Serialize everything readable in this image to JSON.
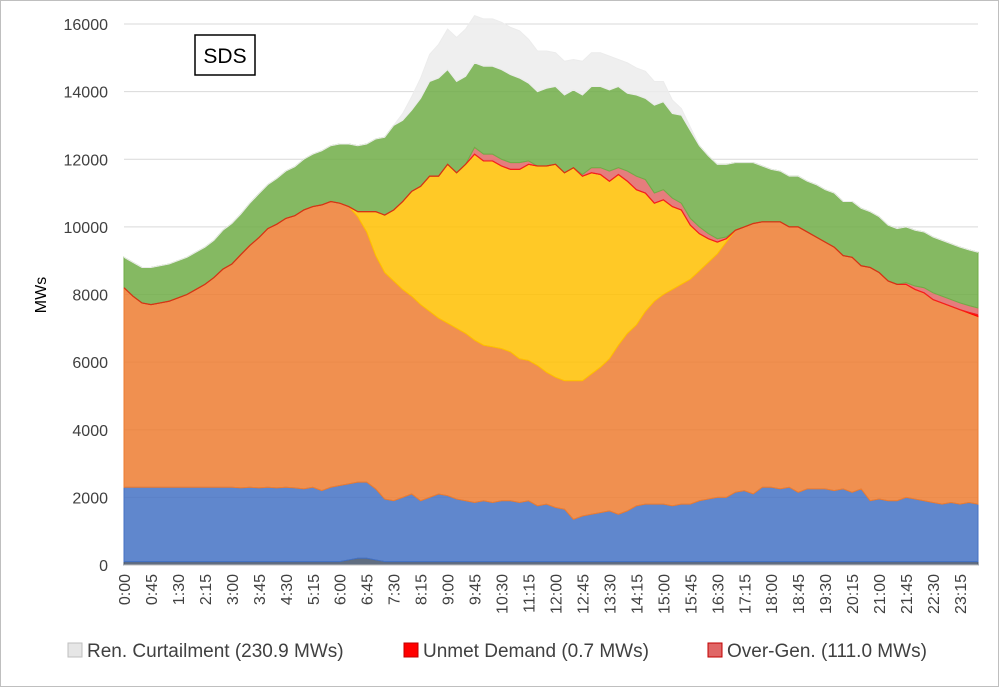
{
  "chart_data": {
    "type": "area",
    "title": "",
    "badge": "SDS",
    "ylabel": "MWs",
    "xlabel": "",
    "ylim": [
      0,
      16000
    ],
    "yticks": [
      0,
      2000,
      4000,
      6000,
      8000,
      10000,
      12000,
      14000,
      16000
    ],
    "grid": true,
    "legend_position": "bottom",
    "x": [
      "0:00",
      "0:15",
      "0:30",
      "0:45",
      "1:00",
      "1:15",
      "1:30",
      "1:45",
      "2:00",
      "2:15",
      "2:30",
      "2:45",
      "3:00",
      "3:15",
      "3:30",
      "3:45",
      "4:00",
      "4:15",
      "4:30",
      "4:45",
      "5:00",
      "5:15",
      "5:30",
      "5:45",
      "6:00",
      "6:15",
      "6:30",
      "6:45",
      "7:00",
      "7:15",
      "7:30",
      "7:45",
      "8:00",
      "8:15",
      "8:30",
      "8:45",
      "9:00",
      "9:15",
      "9:30",
      "9:45",
      "10:00",
      "10:15",
      "10:30",
      "10:45",
      "11:00",
      "11:15",
      "11:30",
      "11:45",
      "12:00",
      "12:15",
      "12:30",
      "12:45",
      "13:00",
      "13:15",
      "13:30",
      "13:45",
      "14:00",
      "14:15",
      "14:30",
      "14:45",
      "15:00",
      "15:15",
      "15:30",
      "15:45",
      "16:00",
      "16:15",
      "16:30",
      "16:45",
      "17:00",
      "17:15",
      "17:30",
      "17:45",
      "18:00",
      "18:15",
      "18:30",
      "18:45",
      "19:00",
      "19:15",
      "19:30",
      "19:45",
      "20:00",
      "20:15",
      "20:30",
      "20:45",
      "21:00",
      "21:15",
      "21:30",
      "21:45",
      "22:00",
      "22:15",
      "22:30",
      "22:45",
      "23:00",
      "23:15",
      "23:30",
      "23:45"
    ],
    "xtick_labels": [
      "0:00",
      "0:45",
      "1:30",
      "2:15",
      "3:00",
      "3:45",
      "4:30",
      "5:15",
      "6:00",
      "6:45",
      "7:30",
      "8:15",
      "9:00",
      "9:45",
      "10:30",
      "11:15",
      "12:00",
      "12:45",
      "13:30",
      "14:15",
      "15:00",
      "15:45",
      "16:30",
      "17:15",
      "18:00",
      "18:45",
      "19:30",
      "20:15",
      "21:00",
      "21:45",
      "22:30",
      "23:15"
    ],
    "series": [
      {
        "name": "",
        "color": "#44546a",
        "values": [
          100,
          100,
          100,
          100,
          100,
          100,
          100,
          100,
          100,
          100,
          100,
          100,
          100,
          100,
          100,
          100,
          100,
          100,
          100,
          100,
          100,
          100,
          100,
          100,
          100,
          150,
          200,
          200,
          150,
          100,
          100,
          100,
          100,
          100,
          100,
          100,
          100,
          100,
          100,
          100,
          100,
          100,
          100,
          100,
          100,
          100,
          100,
          100,
          100,
          100,
          100,
          100,
          100,
          100,
          100,
          100,
          100,
          100,
          100,
          100,
          100,
          100,
          100,
          100,
          100,
          100,
          100,
          100,
          100,
          100,
          100,
          100,
          100,
          100,
          100,
          100,
          100,
          100,
          100,
          100,
          100,
          100,
          100,
          100,
          100,
          100,
          100,
          100,
          100,
          100,
          100,
          100,
          100,
          100,
          100,
          100
        ]
      },
      {
        "name": "",
        "color": "#4472c4",
        "values": [
          2200,
          2200,
          2200,
          2200,
          2200,
          2200,
          2200,
          2200,
          2200,
          2200,
          2200,
          2200,
          2200,
          2180,
          2200,
          2180,
          2200,
          2180,
          2200,
          2180,
          2150,
          2200,
          2100,
          2200,
          2250,
          2250,
          2250,
          2250,
          2100,
          1850,
          1800,
          1900,
          2000,
          1800,
          1900,
          2000,
          1950,
          1850,
          1800,
          1750,
          1800,
          1750,
          1800,
          1800,
          1750,
          1800,
          1650,
          1700,
          1600,
          1550,
          1250,
          1350,
          1400,
          1450,
          1500,
          1400,
          1500,
          1650,
          1700,
          1700,
          1700,
          1650,
          1700,
          1700,
          1800,
          1850,
          1900,
          1900,
          2050,
          2100,
          2000,
          2200,
          2200,
          2150,
          2200,
          2050,
          2150,
          2150,
          2150,
          2100,
          2150,
          2050,
          2150,
          1800,
          1850,
          1800,
          1800,
          1900,
          1850,
          1800,
          1750,
          1700,
          1750,
          1700,
          1750,
          1700
        ]
      },
      {
        "name": "",
        "color": "#ed7d31",
        "values": [
          5900,
          5650,
          5450,
          5400,
          5450,
          5500,
          5600,
          5700,
          5850,
          6000,
          6200,
          6450,
          6600,
          6900,
          7150,
          7400,
          7650,
          7800,
          7950,
          8050,
          8250,
          8300,
          8450,
          8450,
          8350,
          8200,
          7850,
          7400,
          6900,
          6700,
          6500,
          6150,
          5850,
          5800,
          5500,
          5200,
          5100,
          5050,
          4950,
          4800,
          4600,
          4600,
          4500,
          4400,
          4250,
          4150,
          4150,
          3900,
          3850,
          3800,
          4100,
          4000,
          4150,
          4300,
          4500,
          5000,
          5250,
          5350,
          5700,
          6000,
          6200,
          6400,
          6500,
          6650,
          6800,
          7000,
          7200,
          7550,
          7750,
          7800,
          8000,
          7850,
          7850,
          7900,
          7700,
          7850,
          7600,
          7450,
          7300,
          7200,
          6900,
          6950,
          6600,
          6900,
          6700,
          6500,
          6400,
          6300,
          6200,
          6150,
          6000,
          5950,
          5800,
          5750,
          5600,
          5550
        ]
      },
      {
        "name": "",
        "color": "#ffc000",
        "values": [
          0,
          0,
          0,
          0,
          0,
          0,
          0,
          0,
          0,
          0,
          0,
          0,
          0,
          0,
          0,
          0,
          0,
          0,
          0,
          0,
          0,
          0,
          0,
          0,
          0,
          0,
          150,
          600,
          1300,
          1700,
          2100,
          2600,
          3100,
          3500,
          4000,
          4200,
          4700,
          4600,
          5000,
          5500,
          5450,
          5500,
          5400,
          5400,
          5600,
          5800,
          5900,
          6100,
          6300,
          6150,
          6300,
          6050,
          5950,
          5700,
          5250,
          5050,
          4500,
          4000,
          3500,
          2900,
          2800,
          2450,
          2200,
          1600,
          1100,
          700,
          350,
          100,
          0,
          0,
          0,
          0,
          0,
          0,
          0,
          0,
          0,
          0,
          0,
          0,
          0,
          0,
          0,
          0,
          0,
          0,
          0,
          0,
          0,
          0,
          0,
          0,
          0,
          0,
          0,
          0
        ]
      },
      {
        "name": "",
        "color": "#ff0000",
        "values": [
          0,
          0,
          0,
          0,
          0,
          0,
          0,
          0,
          0,
          0,
          0,
          0,
          0,
          0,
          0,
          0,
          0,
          0,
          0,
          0,
          0,
          0,
          0,
          0,
          0,
          0,
          0,
          0,
          0,
          0,
          0,
          0,
          0,
          0,
          0,
          0,
          0,
          0,
          0,
          0,
          0,
          0,
          0,
          0,
          0,
          0,
          0,
          0,
          0,
          0,
          0,
          0,
          0,
          0,
          0,
          0,
          0,
          0,
          0,
          0,
          0,
          0,
          0,
          0,
          0,
          0,
          0,
          0,
          0,
          0,
          0,
          0,
          0,
          0,
          0,
          0,
          0,
          0,
          0,
          0,
          0,
          0,
          0,
          0,
          0,
          0,
          0,
          0,
          0,
          0,
          0,
          0,
          0,
          0,
          20,
          50
        ]
      },
      {
        "name": "Over-Gen. (111.0 MWs)",
        "color": "#e06666",
        "values": [
          0,
          0,
          0,
          0,
          0,
          0,
          0,
          0,
          0,
          0,
          0,
          0,
          0,
          0,
          0,
          0,
          0,
          0,
          0,
          0,
          0,
          0,
          0,
          0,
          0,
          0,
          0,
          0,
          0,
          0,
          0,
          0,
          0,
          0,
          0,
          0,
          0,
          0,
          0,
          200,
          200,
          200,
          200,
          200,
          200,
          100,
          0,
          0,
          0,
          0,
          0,
          50,
          150,
          200,
          300,
          200,
          300,
          400,
          400,
          300,
          300,
          250,
          200,
          200,
          200,
          150,
          100,
          50,
          0,
          0,
          0,
          0,
          0,
          0,
          0,
          0,
          0,
          0,
          0,
          0,
          0,
          0,
          0,
          0,
          0,
          0,
          0,
          50,
          100,
          150,
          200,
          200,
          200,
          200,
          200,
          200
        ]
      },
      {
        "name": "",
        "color": "#70ad47",
        "values": [
          900,
          1000,
          1050,
          1100,
          1100,
          1100,
          1100,
          1100,
          1100,
          1100,
          1100,
          1150,
          1200,
          1200,
          1250,
          1300,
          1300,
          1350,
          1400,
          1450,
          1500,
          1550,
          1600,
          1650,
          1750,
          1850,
          1950,
          2000,
          2150,
          2300,
          2500,
          2400,
          2400,
          2600,
          2800,
          2900,
          2800,
          2700,
          2600,
          2500,
          2600,
          2600,
          2650,
          2600,
          2500,
          2300,
          2200,
          2300,
          2300,
          2300,
          2300,
          2350,
          2400,
          2400,
          2400,
          2400,
          2300,
          2400,
          2400,
          2600,
          2600,
          2500,
          2600,
          2600,
          2400,
          2300,
          2200,
          2150,
          2000,
          1900,
          1800,
          1650,
          1550,
          1500,
          1500,
          1500,
          1500,
          1550,
          1550,
          1600,
          1600,
          1650,
          1700,
          1650,
          1650,
          1650,
          1650,
          1650,
          1650,
          1650,
          1650,
          1650,
          1650,
          1650,
          1650,
          1650
        ]
      },
      {
        "name": "Ren. Curtailment (230.9 MWs)",
        "color": "#ececec",
        "values": [
          0,
          0,
          0,
          0,
          0,
          0,
          0,
          0,
          0,
          0,
          0,
          0,
          0,
          0,
          0,
          0,
          0,
          0,
          0,
          0,
          0,
          0,
          0,
          0,
          0,
          0,
          0,
          0,
          0,
          0,
          0,
          200,
          400,
          600,
          800,
          1000,
          1200,
          1300,
          1400,
          1400,
          1400,
          1400,
          1400,
          1400,
          1400,
          1300,
          1200,
          1100,
          1000,
          1000,
          900,
          1000,
          1000,
          1000,
          1000,
          800,
          900,
          800,
          800,
          700,
          600,
          400,
          200,
          100,
          0,
          0,
          0,
          0,
          0,
          0,
          0,
          0,
          0,
          0,
          0,
          0,
          0,
          0,
          0,
          0,
          0,
          0,
          0,
          0,
          0,
          0,
          0,
          0,
          0,
          0,
          0,
          0,
          0,
          0,
          0,
          0
        ]
      }
    ],
    "legend": [
      {
        "label": "Ren. Curtailment (230.9 MWs)",
        "color": "#e6e6e6",
        "border": "#bfbfbf"
      },
      {
        "label": "Unmet Demand (0.7 MWs)",
        "color": "#ff0000",
        "border": "#c00000"
      },
      {
        "label": "Over-Gen. (111.0 MWs)",
        "color": "#e06666",
        "border": "#c00000"
      }
    ]
  }
}
